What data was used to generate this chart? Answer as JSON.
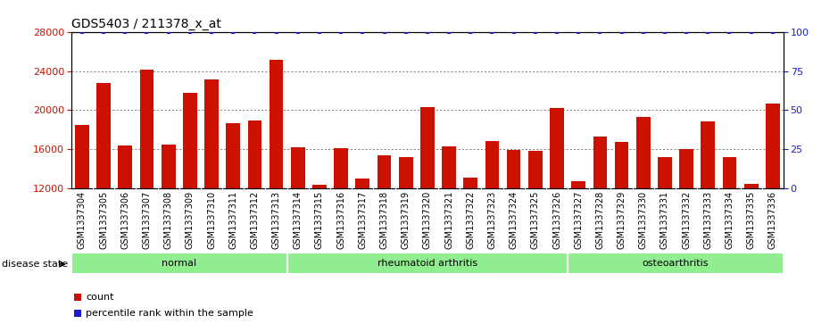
{
  "title": "GDS5403 / 211378_x_at",
  "samples": [
    "GSM1337304",
    "GSM1337305",
    "GSM1337306",
    "GSM1337307",
    "GSM1337308",
    "GSM1337309",
    "GSM1337310",
    "GSM1337311",
    "GSM1337312",
    "GSM1337313",
    "GSM1337314",
    "GSM1337315",
    "GSM1337316",
    "GSM1337317",
    "GSM1337318",
    "GSM1337319",
    "GSM1337320",
    "GSM1337321",
    "GSM1337322",
    "GSM1337323",
    "GSM1337324",
    "GSM1337325",
    "GSM1337326",
    "GSM1337327",
    "GSM1337328",
    "GSM1337329",
    "GSM1337330",
    "GSM1337331",
    "GSM1337332",
    "GSM1337333",
    "GSM1337334",
    "GSM1337335",
    "GSM1337336"
  ],
  "counts": [
    18500,
    22800,
    16400,
    24200,
    16500,
    21800,
    23200,
    18700,
    18900,
    25200,
    16200,
    12300,
    16100,
    13000,
    15400,
    15200,
    20300,
    16300,
    13100,
    16800,
    15900,
    15800,
    20200,
    12700,
    17300,
    16700,
    19300,
    15200,
    16000,
    18800,
    15200,
    12400,
    20700
  ],
  "percentile_ranks": [
    100,
    100,
    100,
    100,
    100,
    100,
    100,
    100,
    100,
    100,
    100,
    100,
    100,
    100,
    100,
    100,
    100,
    100,
    100,
    100,
    100,
    100,
    100,
    100,
    100,
    100,
    100,
    100,
    100,
    100,
    100,
    100,
    100
  ],
  "groups": [
    {
      "label": "normal",
      "start": 0,
      "end": 9,
      "color": "#90EE90"
    },
    {
      "label": "rheumatoid arthritis",
      "start": 10,
      "end": 22,
      "color": "#90EE90"
    },
    {
      "label": "osteoarthritis",
      "start": 23,
      "end": 32,
      "color": "#90EE90"
    }
  ],
  "bar_color": "#CC1100",
  "percentile_color": "#1C1CCC",
  "ylim_left": [
    12000,
    28000
  ],
  "ylim_right": [
    0,
    100
  ],
  "yticks_left": [
    12000,
    16000,
    20000,
    24000,
    28000
  ],
  "yticks_right": [
    0,
    25,
    50,
    75,
    100
  ],
  "chart_bg": "#ffffff",
  "tick_label_bg": "#d8d8d8",
  "grid_color": "#000000",
  "title_fontsize": 10,
  "tick_fontsize": 7,
  "legend_items": [
    "count",
    "percentile rank within the sample"
  ],
  "legend_colors": [
    "#CC1100",
    "#1C1CCC"
  ],
  "disease_state_label": "disease state"
}
